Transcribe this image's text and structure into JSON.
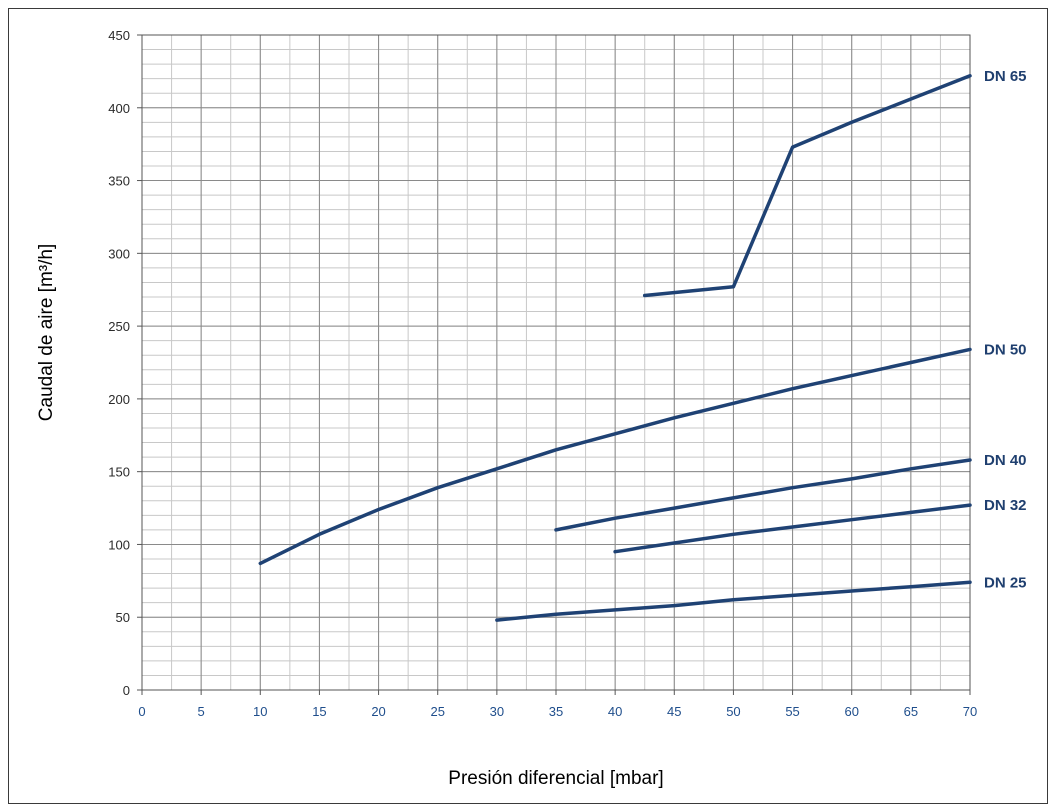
{
  "chart_data": {
    "type": "line",
    "title": "",
    "xlabel": "Presión diferencial [mbar]",
    "ylabel": "Caudal de aire [m³/h]",
    "xlim": [
      0,
      70
    ],
    "ylim": [
      0,
      450
    ],
    "x_ticks": [
      0,
      5,
      10,
      15,
      20,
      25,
      30,
      35,
      40,
      45,
      50,
      55,
      60,
      65,
      70
    ],
    "y_ticks": [
      0,
      50,
      100,
      150,
      200,
      250,
      300,
      350,
      400,
      450
    ],
    "x_tick_labels": [
      "0",
      "5",
      "10",
      "15",
      "20",
      "25",
      "30",
      "35",
      "40",
      "45",
      "50",
      "55",
      "60",
      "65",
      "70"
    ],
    "y_tick_labels": [
      "0",
      "50",
      "100",
      "150",
      "200",
      "250",
      "300",
      "350",
      "400",
      "450"
    ],
    "grid": true,
    "grid_minor": true,
    "legend": "inline-right",
    "line_color": "#1f4274",
    "series": [
      {
        "name": "DN 65",
        "points": [
          [
            42.5,
            271
          ],
          [
            50,
            277
          ],
          [
            55,
            373
          ],
          [
            60,
            390
          ],
          [
            65,
            406
          ],
          [
            70,
            422
          ]
        ]
      },
      {
        "name": "DN 50",
        "points": [
          [
            10,
            87
          ],
          [
            15,
            107
          ],
          [
            20,
            124
          ],
          [
            25,
            139
          ],
          [
            30,
            152
          ],
          [
            35,
            165
          ],
          [
            40,
            176
          ],
          [
            45,
            187
          ],
          [
            50,
            197
          ],
          [
            55,
            207
          ],
          [
            60,
            216
          ],
          [
            65,
            225
          ],
          [
            70,
            234
          ]
        ]
      },
      {
        "name": "DN 40",
        "points": [
          [
            35,
            110
          ],
          [
            40,
            118
          ],
          [
            45,
            125
          ],
          [
            50,
            132
          ],
          [
            55,
            139
          ],
          [
            60,
            145
          ],
          [
            65,
            152
          ],
          [
            70,
            158
          ]
        ]
      },
      {
        "name": "DN 32",
        "points": [
          [
            40,
            95
          ],
          [
            45,
            101
          ],
          [
            50,
            107
          ],
          [
            55,
            112
          ],
          [
            60,
            117
          ],
          [
            65,
            122
          ],
          [
            70,
            127
          ]
        ]
      },
      {
        "name": "DN 25",
        "points": [
          [
            30,
            48
          ],
          [
            35,
            52
          ],
          [
            40,
            55
          ],
          [
            45,
            58
          ],
          [
            50,
            62
          ],
          [
            55,
            65
          ],
          [
            60,
            68
          ],
          [
            65,
            71
          ],
          [
            70,
            74
          ]
        ]
      }
    ]
  }
}
